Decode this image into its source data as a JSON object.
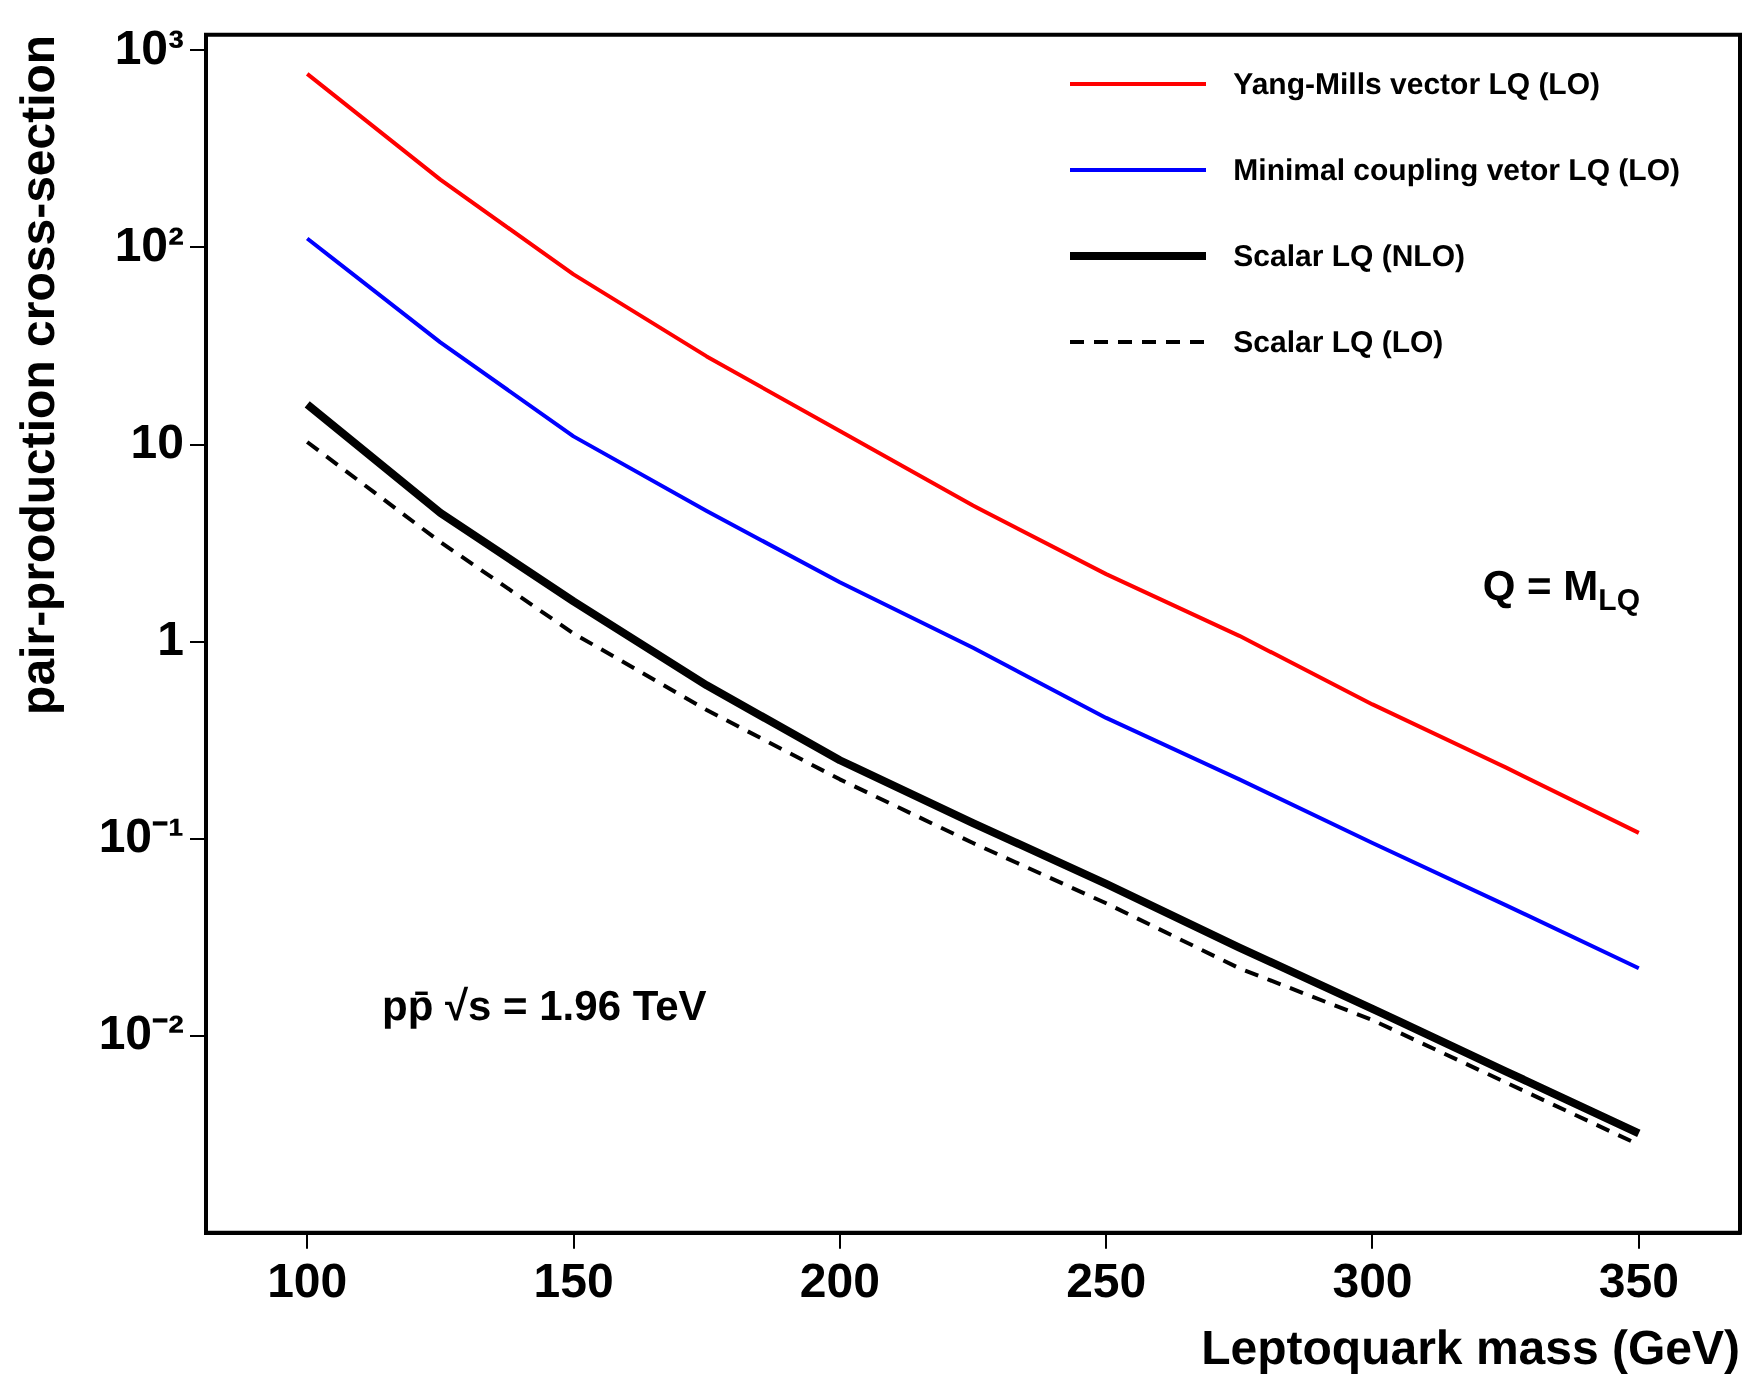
{
  "chart_data": {
    "type": "line",
    "xlabel": "Leptoquark mass (GeV)",
    "ylabel": "pair-production cross-section",
    "x": [
      100,
      125,
      150,
      175,
      200,
      225,
      250,
      275,
      300,
      325,
      350
    ],
    "series": [
      {
        "name": "Yang-Mills vector LQ (LO)",
        "color": "#ff0000",
        "values": [
          760,
          221,
          73,
          28,
          11.7,
          4.9,
          2.2,
          1.07,
          0.48,
          0.23,
          0.107
        ]
      },
      {
        "name": "Minimal coupling vetor LQ (LO)",
        "color": "#0000ff",
        "values": [
          111,
          33,
          11,
          4.6,
          2.0,
          0.93,
          0.41,
          0.2,
          0.095,
          0.046,
          0.022
        ]
      },
      {
        "name": "Scalar LQ (NLO)",
        "color": "#000000",
        "values": [
          16,
          4.5,
          1.6,
          0.6,
          0.25,
          0.12,
          0.059,
          0.028,
          0.0137,
          0.0066,
          0.0032
        ]
      },
      {
        "name": "Scalar LQ (LO)",
        "color": "#000000",
        "line_style": "dashed",
        "values": [
          10.3,
          3.2,
          1.1,
          0.45,
          0.2,
          0.095,
          0.047,
          0.022,
          0.012,
          0.0058,
          0.0028
        ]
      }
    ],
    "log": "y",
    "xlim": [
      81,
      369
    ],
    "ylim": [
      0.001,
      1200
    ],
    "xticks": [
      100,
      150,
      200,
      250,
      300,
      350
    ],
    "yticks": [
      {
        "value": 1000,
        "label": "10³"
      },
      {
        "value": 100,
        "label": "10²"
      },
      10,
      1,
      {
        "value": 0.1,
        "label": "10⁻¹"
      },
      {
        "value": 0.01,
        "label": "10⁻²"
      }
    ],
    "legend": "top right",
    "grid": false,
    "marker": "none",
    "annotations": [
      "Q = M$_{LQ}$",
      "pp̄ √s = 1.96 TeV"
    ]
  }
}
